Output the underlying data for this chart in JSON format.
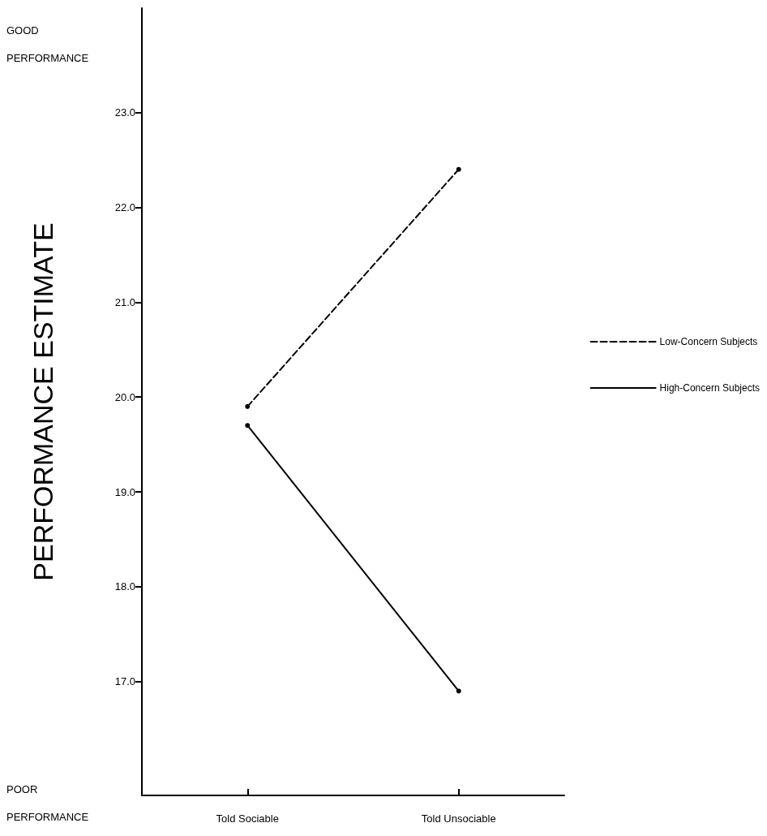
{
  "chart_data": {
    "type": "line",
    "ylabel": "PERFORMANCE ESTIMATE",
    "categories": [
      "Told Sociable",
      "Told Unsociable"
    ],
    "series": [
      {
        "name": "Low-Concern Subjects",
        "color": "#000000",
        "values": [
          19.9,
          22.4
        ],
        "line_style": "dashed"
      },
      {
        "name": "High-Concern Subjects",
        "color": "#000000",
        "values": [
          19.7,
          16.9
        ],
        "line_style": "solid"
      }
    ],
    "ylim": [
      15.8,
      24.1
    ],
    "yticks": [
      {
        "value": 17,
        "label": "17.0"
      },
      {
        "value": 18,
        "label": "18.0"
      },
      {
        "value": 19,
        "label": "19.0"
      },
      {
        "value": 20,
        "label": "20.0"
      },
      {
        "value": 21,
        "label": "21.0"
      },
      {
        "value": 22,
        "label": "22.0"
      },
      {
        "value": 23,
        "label": "23.0"
      }
    ],
    "annotations": [
      "GOOD\nPERFORMANCE",
      "POOR\nPERFORMANCE"
    ],
    "grid": false,
    "legend": "right",
    "marker": "circle"
  }
}
